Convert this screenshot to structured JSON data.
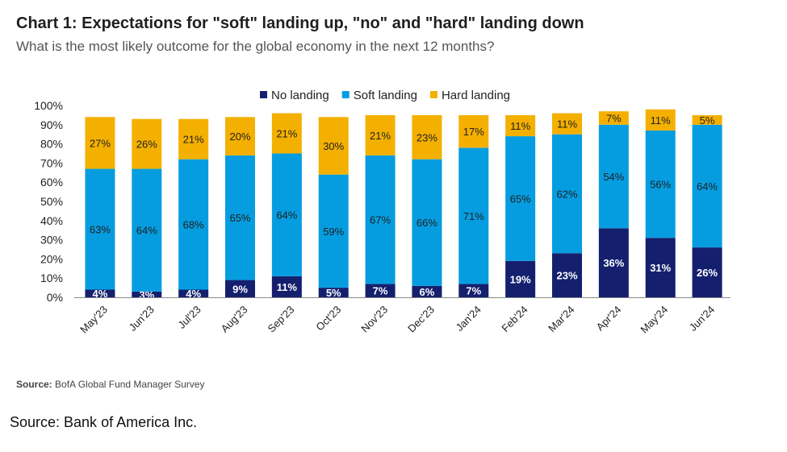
{
  "chart_data": {
    "type": "bar",
    "stacked": true,
    "title": "Chart 1: Expectations for \"soft\" landing up, \"no\" and \"hard\" landing down",
    "subtitle": "What is the most likely outcome for the global economy in the next 12 months?",
    "categories": [
      "May'23",
      "Jun'23",
      "Jul'23",
      "Aug'23",
      "Sep'23",
      "Oct'23",
      "Nov'23",
      "Dec'23",
      "Jan'24",
      "Feb'24",
      "Mar'24",
      "Apr'24",
      "May'24",
      "Jun'24"
    ],
    "series": [
      {
        "name": "No landing",
        "color": "#14206e",
        "values": [
          4,
          3,
          4,
          9,
          11,
          5,
          7,
          6,
          7,
          19,
          23,
          36,
          31,
          26
        ]
      },
      {
        "name": "Soft landing",
        "color": "#069de0",
        "values": [
          63,
          64,
          68,
          65,
          64,
          59,
          67,
          66,
          71,
          65,
          62,
          54,
          56,
          64
        ]
      },
      {
        "name": "Hard landing",
        "color": "#f4b000",
        "values": [
          27,
          26,
          21,
          20,
          21,
          30,
          21,
          23,
          17,
          11,
          11,
          7,
          11,
          5
        ]
      }
    ],
    "ylim": [
      0,
      100
    ],
    "yticks": [
      "0%",
      "10%",
      "20%",
      "30%",
      "40%",
      "50%",
      "60%",
      "70%",
      "80%",
      "90%",
      "100%"
    ],
    "legend_position": "top",
    "grid": false,
    "source_label": "Source:",
    "source_text": "BofA Global Fund Manager Survey"
  },
  "footer": {
    "source": "Source: Bank of America Inc."
  }
}
